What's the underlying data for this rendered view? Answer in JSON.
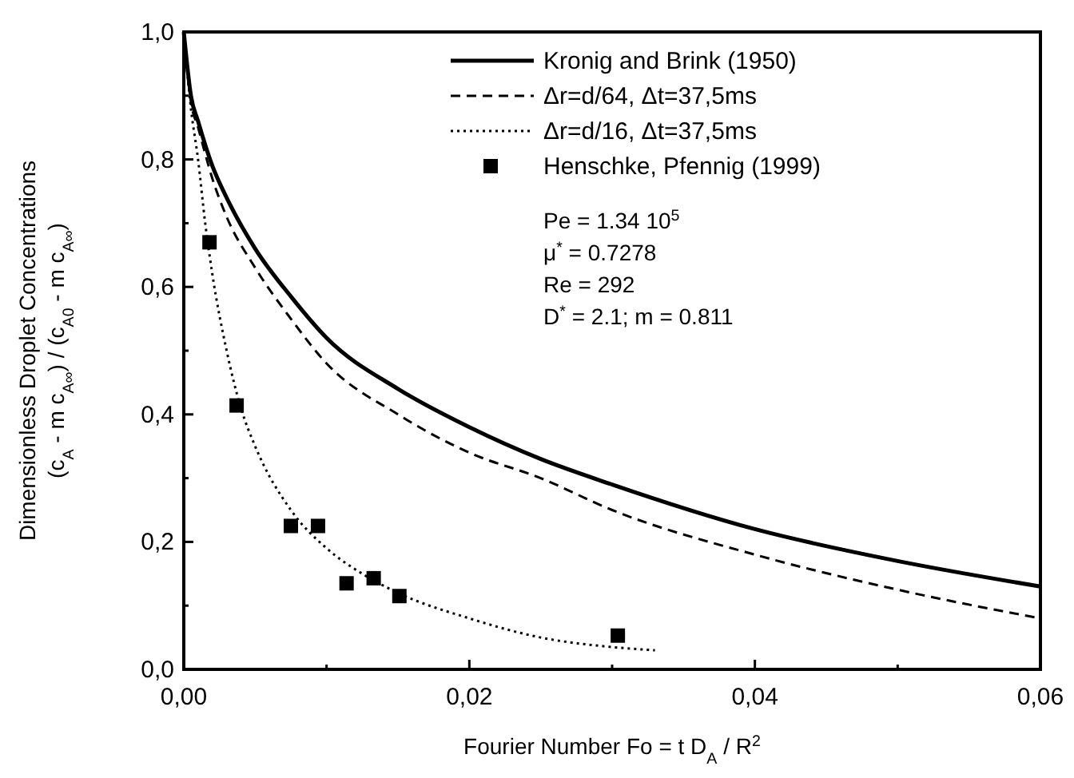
{
  "chart_data": {
    "type": "line",
    "xlabel": "Fourier Number Fo = t D$_{A}$ / R$^{2}$",
    "ylabel": "Dimensionless Droplet Concentrations\n(c$_{A}$ - m c$_{A∞}$) / (c$_{A0}$ - m c$_{A∞}$)",
    "xlim": [
      0,
      0.06
    ],
    "ylim": [
      0,
      1
    ],
    "xticks": [
      {
        "value": 0,
        "label": "0,00"
      },
      {
        "value": 0.01,
        "label": null
      },
      {
        "value": 0.02,
        "label": "0,02"
      },
      {
        "value": 0.03,
        "label": null
      },
      {
        "value": 0.04,
        "label": "0,04"
      },
      {
        "value": 0.05,
        "label": null
      },
      {
        "value": 0.06,
        "label": "0,06"
      }
    ],
    "yticks": [
      {
        "value": 0,
        "label": "0,0"
      },
      {
        "value": 0.1,
        "label": null
      },
      {
        "value": 0.2,
        "label": "0,2"
      },
      {
        "value": 0.3,
        "label": null
      },
      {
        "value": 0.4,
        "label": "0,4"
      },
      {
        "value": 0.5,
        "label": null
      },
      {
        "value": 0.6,
        "label": "0,6"
      },
      {
        "value": 0.7,
        "label": null
      },
      {
        "value": 0.8,
        "label": "0,8"
      },
      {
        "value": 0.9,
        "label": null
      },
      {
        "value": 1,
        "label": "1,0"
      }
    ],
    "grid": false,
    "legend": "top right",
    "series": [
      {
        "name": "Kronig and Brink (1950)",
        "color": "#000000",
        "line_style": "solid",
        "x": [
          0,
          0.0005,
          0.001,
          0.002,
          0.003,
          0.005,
          0.0075,
          0.01,
          0.015,
          0.02,
          0.025,
          0.03,
          0.04,
          0.05,
          0.06
        ],
        "values": [
          1.0,
          0.9,
          0.86,
          0.79,
          0.74,
          0.66,
          0.585,
          0.52,
          0.44,
          0.38,
          0.33,
          0.29,
          0.22,
          0.17,
          0.13
        ]
      },
      {
        "name": "Δr=d/64, Δt=37,5ms",
        "color": "#000000",
        "line_style": "dashed",
        "x": [
          0,
          0.0005,
          0.001,
          0.002,
          0.003,
          0.005,
          0.0075,
          0.01,
          0.015,
          0.02,
          0.025,
          0.03,
          0.04,
          0.05,
          0.06
        ],
        "values": [
          1.0,
          0.89,
          0.85,
          0.77,
          0.71,
          0.63,
          0.55,
          0.48,
          0.4,
          0.34,
          0.3,
          0.25,
          0.18,
          0.125,
          0.08
        ]
      },
      {
        "name": "Δr=d/16, Δt=37,5ms",
        "color": "#000000",
        "line_style": "dotted",
        "x": [
          0,
          0.0005,
          0.001,
          0.0015,
          0.002,
          0.003,
          0.004,
          0.005,
          0.0075,
          0.01,
          0.0125,
          0.015,
          0.02,
          0.025,
          0.03,
          0.033
        ],
        "values": [
          1.0,
          0.88,
          0.8,
          0.7,
          0.62,
          0.5,
          0.41,
          0.35,
          0.25,
          0.19,
          0.15,
          0.12,
          0.08,
          0.05,
          0.035,
          0.03
        ]
      },
      {
        "name": "Henschke, Pfennig (1999)",
        "type": "scatter",
        "color": "#000000",
        "marker": "square",
        "x": [
          0.0018,
          0.0037,
          0.0075,
          0.0094,
          0.0114,
          0.0133,
          0.0151,
          0.0304
        ],
        "values": [
          0.67,
          0.414,
          0.225,
          0.225,
          0.135,
          0.143,
          0.115,
          0.053
        ]
      }
    ],
    "annotations": [
      "Pe = 1.34 10$^{5}$",
      "μ$^{*}$ = 0.7278",
      "Re = 292",
      "D$^{*}$ = 2.1; m = 0.811"
    ]
  }
}
